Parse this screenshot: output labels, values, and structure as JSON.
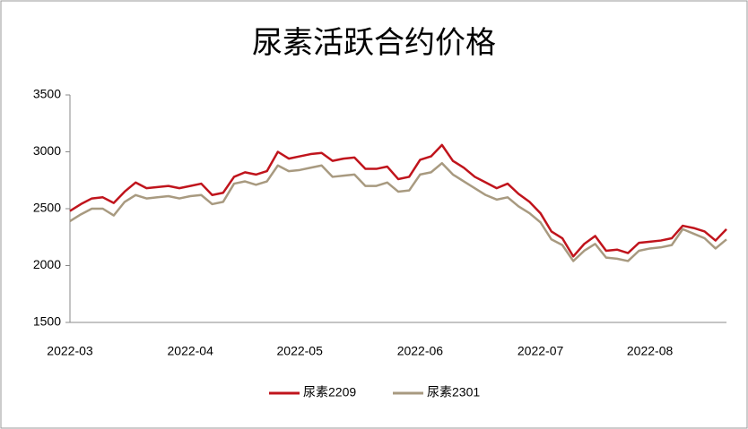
{
  "chart_data": {
    "type": "line",
    "title": "尿素活跃合约价格",
    "categories": [
      "2022-03",
      null,
      null,
      null,
      null,
      null,
      null,
      null,
      null,
      null,
      null,
      "2022-04",
      null,
      null,
      null,
      null,
      null,
      null,
      null,
      null,
      null,
      "2022-05",
      null,
      null,
      null,
      null,
      null,
      null,
      null,
      null,
      null,
      null,
      "2022-06",
      null,
      null,
      null,
      null,
      null,
      null,
      null,
      null,
      null,
      null,
      "2022-07",
      null,
      null,
      null,
      null,
      null,
      null,
      null,
      null,
      null,
      "2022-08",
      null,
      null,
      null,
      null,
      null,
      null,
      null
    ],
    "series": [
      {
        "name": "尿素2209",
        "color": "#c0141c",
        "values": [
          2480,
          2540,
          2590,
          2600,
          2550,
          2650,
          2730,
          2680,
          2690,
          2700,
          2680,
          2700,
          2720,
          2620,
          2640,
          2780,
          2820,
          2800,
          2830,
          3000,
          2940,
          2960,
          2980,
          2990,
          2920,
          2940,
          2950,
          2850,
          2850,
          2870,
          2760,
          2780,
          2930,
          2960,
          3060,
          2920,
          2860,
          2780,
          2730,
          2680,
          2720,
          2630,
          2560,
          2460,
          2300,
          2240,
          2080,
          2190,
          2260,
          2130,
          2140,
          2110,
          2200,
          2210,
          2220,
          2240,
          2350,
          2330,
          2300,
          2220,
          2320
        ]
      },
      {
        "name": "尿素2301",
        "color": "#a89a80",
        "values": [
          2390,
          2450,
          2500,
          2500,
          2440,
          2560,
          2620,
          2590,
          2600,
          2610,
          2590,
          2610,
          2620,
          2540,
          2560,
          2720,
          2740,
          2710,
          2740,
          2880,
          2830,
          2840,
          2860,
          2880,
          2780,
          2790,
          2800,
          2700,
          2700,
          2730,
          2650,
          2660,
          2800,
          2820,
          2900,
          2800,
          2740,
          2680,
          2620,
          2580,
          2600,
          2520,
          2460,
          2380,
          2230,
          2180,
          2040,
          2130,
          2190,
          2070,
          2060,
          2040,
          2130,
          2150,
          2160,
          2180,
          2320,
          2280,
          2240,
          2150,
          2230
        ]
      }
    ],
    "ylim": [
      1500,
      3500
    ],
    "yticks": [
      1500,
      2000,
      2500,
      3000,
      3500
    ],
    "legend": "bottom"
  }
}
